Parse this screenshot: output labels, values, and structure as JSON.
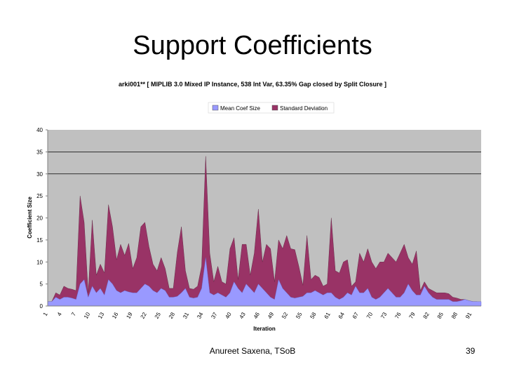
{
  "slide": {
    "title": "Support Coefficients",
    "footer": "Anureet Saxena, TSoB",
    "page_number": "39"
  },
  "chart_data": {
    "type": "area",
    "stacked": true,
    "title": "arki001** [ MIPLIB 3.0 Mixed IP Instance, 538 Int Var, 63.35% Gap closed by Split Closure ]",
    "xlabel": "Iteration",
    "ylabel": "Coefficient Size",
    "ylim": [
      0,
      40
    ],
    "yticks": [
      0,
      5,
      10,
      15,
      20,
      25,
      30,
      35,
      40
    ],
    "gridlines": [
      30,
      35
    ],
    "legend_position": "top",
    "x_ticks": [
      "1",
      "4",
      "7",
      "10",
      "13",
      "16",
      "19",
      "22",
      "25",
      "28",
      "31",
      "34",
      "37",
      "40",
      "43",
      "46",
      "49",
      "52",
      "55",
      "58",
      "61",
      "64",
      "67",
      "70",
      "73",
      "76",
      "79",
      "82",
      "85",
      "88",
      "91"
    ],
    "x_range": [
      1,
      93
    ],
    "series": [
      {
        "name": "Mean Coef Size",
        "color": "#9999ff",
        "values": [
          1,
          1,
          2,
          1.5,
          2,
          2,
          1.8,
          1.5,
          5,
          6,
          2,
          4.5,
          3,
          4,
          2.5,
          6,
          5,
          3.5,
          3,
          3.5,
          3.2,
          3,
          3,
          4,
          5,
          4.5,
          3.5,
          3,
          4,
          3.5,
          2,
          2,
          2.2,
          3,
          4,
          2,
          1.8,
          2,
          4,
          11,
          3,
          2.5,
          3,
          2.5,
          2,
          3,
          5.5,
          4,
          3,
          5,
          4,
          3,
          5,
          4,
          3,
          2,
          1.5,
          6,
          4,
          3,
          2,
          1.8,
          2,
          2.2,
          3,
          3,
          3.5,
          3,
          2.5,
          3,
          3,
          2,
          1.5,
          2,
          3,
          2.5,
          4.5,
          3,
          3,
          4,
          2,
          1.5,
          2,
          3,
          4,
          3,
          2,
          2,
          3,
          5,
          3.5,
          2.5,
          2.5,
          4.5,
          3,
          2,
          1.5,
          1.5,
          1.5,
          1.5,
          1,
          1,
          1.2,
          1.5,
          1.2,
          1,
          1,
          1
        ]
      },
      {
        "name": "Standard Deviation",
        "color": "#993366",
        "values": [
          0,
          0,
          1,
          1,
          2.5,
          2,
          2,
          2,
          20,
          13,
          1,
          15,
          4,
          5.5,
          5,
          17,
          13,
          7,
          11,
          8,
          11,
          5.5,
          8,
          14,
          14,
          9,
          6,
          5,
          7,
          5,
          2,
          2,
          10,
          15,
          4,
          2,
          2,
          2.5,
          5,
          23,
          9,
          3,
          6,
          3,
          3,
          10,
          10,
          2,
          11,
          9,
          3,
          9,
          17,
          6,
          11,
          11,
          4,
          9,
          9,
          13,
          11,
          11,
          7,
          2.5,
          13,
          3,
          3.5,
          3.5,
          2,
          2,
          17,
          6,
          6,
          8,
          7.5,
          2,
          1,
          9,
          7,
          9,
          8,
          7,
          8,
          7,
          8,
          8,
          8,
          10,
          11,
          6,
          6,
          10,
          1,
          1,
          1,
          1.5,
          1.5,
          1.5,
          1.5,
          1.3,
          1,
          0.8,
          0.3,
          0,
          0,
          0,
          0
        ]
      }
    ]
  }
}
